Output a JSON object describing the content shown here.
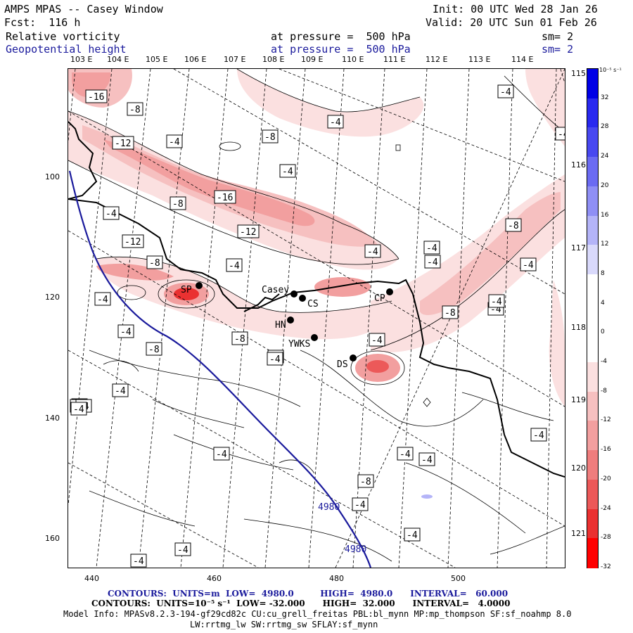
{
  "header": {
    "title": "AMPS MPAS -- Casey Window",
    "forecast": "Fcst:  116 h",
    "init": "Init: 00 UTC Wed 28 Jan 26",
    "valid": "Valid: 20 UTC Sun 01 Feb 26",
    "field1": {
      "name": "Relative vorticity",
      "level": "at pressure =  500 hPa",
      "smooth": "sm= 2"
    },
    "field2": {
      "name": "Geopotential height",
      "level": "at pressure =  500 hPa",
      "smooth": "sm= 2"
    }
  },
  "map": {
    "top_lon_labels": [
      "103 E",
      "104 E",
      "105 E",
      "106 E",
      "107 E",
      "108 E",
      "109 E",
      "110 E",
      "111 E",
      "112 E",
      "113 E",
      "114 E",
      "115 E"
    ],
    "right_lon_labels": [
      "116 E",
      "117 E",
      "118 E",
      "119 E",
      "120 E",
      "121 E"
    ],
    "x_ticks": [
      "440",
      "460",
      "480",
      "500"
    ],
    "y_ticks": [
      "100",
      "120",
      "140",
      "160"
    ],
    "stations": [
      {
        "label": "Casey"
      },
      {
        "label": "CS"
      },
      {
        "label": "CP"
      },
      {
        "label": "SP"
      },
      {
        "label": "HN"
      },
      {
        "label": "YWKS"
      },
      {
        "label": "DS"
      }
    ],
    "height_contour_labels": [
      "4980",
      "4980"
    ],
    "vort_labels": [
      "-16",
      "-8",
      "-4",
      "-4",
      "-8",
      "-12",
      "-4",
      "-4",
      "-16",
      "-12",
      "-8",
      "-4",
      "-8",
      "-4",
      "-4",
      "-8",
      "-4",
      "-12",
      "-4",
      "-4",
      "-4",
      "-8",
      "-4",
      "-8",
      "-4",
      "-8",
      "-4",
      "-4",
      "-4",
      "-4",
      "-4",
      "-4",
      "-8",
      "-4",
      "-4",
      "-4",
      "-4",
      "-4",
      "-4",
      "-4",
      "-4",
      "-4",
      "-4",
      "-4",
      "-4"
    ]
  },
  "colorbar": {
    "unit": "10⁻⁵ s⁻¹",
    "levels": [
      "32",
      "28",
      "24",
      "20",
      "16",
      "12",
      "8",
      "4",
      "0",
      "-4",
      "-8",
      "-12",
      "-16",
      "-20",
      "-24",
      "-28",
      "-32"
    ],
    "colors": [
      "#0000e6",
      "#2929ef",
      "#4848f0",
      "#6b6bf2",
      "#8f8ff5",
      "#b4b4f8",
      "#d9d9fb",
      "#ffffff",
      "#ffffff",
      "#ffffff",
      "#fbe0e0",
      "#f6c0c0",
      "#f29f9f",
      "#ef7d7d",
      "#ec5959",
      "#ea3131",
      "#ff0000"
    ]
  },
  "footer": {
    "line1": "CONTOURS:  UNITS=m  LOW=  4980.0         HIGH=  4980.0      INTERVAL=   60.000",
    "line2": "CONTOURS:  UNITS=10⁻⁵ s⁻¹  LOW= -32.000      HIGH=  32.000      INTERVAL=   4.0000",
    "line3": "Model Info: MPASv8.2.3-194-gf29cd82c CU:cu_grell_freitas PBL:bl_mynn MP:mp_thompson SF:sf_noahmp 8.0",
    "line4": "LW:rrtmg_lw SW:rrtmg_sw SFLAY:sf_mynn"
  }
}
